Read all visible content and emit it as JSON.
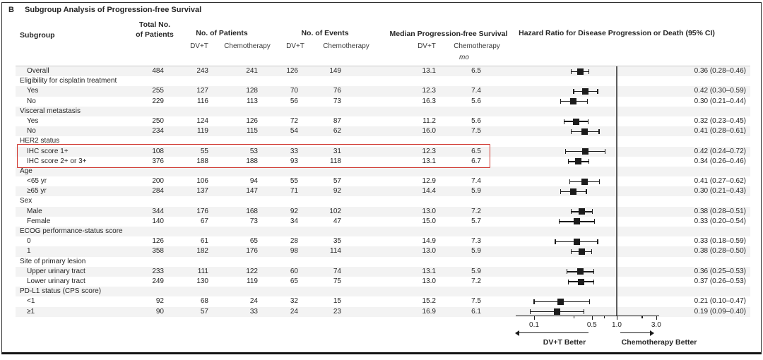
{
  "panel_label": "B",
  "title": "Subgroup Analysis of Progression-free Survival",
  "columns": {
    "subgroup": "Subgroup",
    "total_line1": "Total No.",
    "total_line2": "of Patients",
    "no_of_patients": "No. of Patients",
    "no_of_events": "No. of Events",
    "median_pfs": "Median Progression-free Survival",
    "hazard_ratio": "Hazard Ratio for Disease Progression or Death (95% CI)",
    "dvt": "DV+T",
    "chemotherapy": "Chemotherapy",
    "months_unit": "mo"
  },
  "rows": [
    {
      "type": "data",
      "label": "Overall",
      "total": "484",
      "p_dvt": "243",
      "p_chemo": "241",
      "e_dvt": "126",
      "e_chemo": "149",
      "m_dvt": "13.1",
      "m_chemo": "6.5",
      "hr_text": "0.36 (0.28–0.46)"
    },
    {
      "type": "group",
      "label": "Eligibility for cisplatin treatment"
    },
    {
      "type": "data",
      "label": "Yes",
      "total": "255",
      "p_dvt": "127",
      "p_chemo": "128",
      "e_dvt": "70",
      "e_chemo": "76",
      "m_dvt": "12.3",
      "m_chemo": "7.4",
      "hr_text": "0.42 (0.30–0.59)"
    },
    {
      "type": "data",
      "label": "No",
      "total": "229",
      "p_dvt": "116",
      "p_chemo": "113",
      "e_dvt": "56",
      "e_chemo": "73",
      "m_dvt": "16.3",
      "m_chemo": "5.6",
      "hr_text": "0.30 (0.21–0.44)"
    },
    {
      "type": "group",
      "label": "Visceral metastasis"
    },
    {
      "type": "data",
      "label": "Yes",
      "total": "250",
      "p_dvt": "124",
      "p_chemo": "126",
      "e_dvt": "72",
      "e_chemo": "87",
      "m_dvt": "11.2",
      "m_chemo": "5.6",
      "hr_text": "0.32 (0.23–0.45)"
    },
    {
      "type": "data",
      "label": "No",
      "total": "234",
      "p_dvt": "119",
      "p_chemo": "115",
      "e_dvt": "54",
      "e_chemo": "62",
      "m_dvt": "16.0",
      "m_chemo": "7.5",
      "hr_text": "0.41 (0.28–0.61)"
    },
    {
      "type": "group",
      "label": "HER2 status"
    },
    {
      "type": "data",
      "label": "IHC score 1+",
      "highlight": true,
      "total": "108",
      "p_dvt": "55",
      "p_chemo": "53",
      "e_dvt": "33",
      "e_chemo": "31",
      "m_dvt": "12.3",
      "m_chemo": "6.5",
      "hr_text": "0.42 (0.24–0.72)"
    },
    {
      "type": "data",
      "label": "IHC score 2+ or 3+",
      "highlight": true,
      "total": "376",
      "p_dvt": "188",
      "p_chemo": "188",
      "e_dvt": "93",
      "e_chemo": "118",
      "m_dvt": "13.1",
      "m_chemo": "6.7",
      "hr_text": "0.34 (0.26–0.46)"
    },
    {
      "type": "group",
      "label": "Age"
    },
    {
      "type": "data",
      "label": "<65 yr",
      "total": "200",
      "p_dvt": "106",
      "p_chemo": "94",
      "e_dvt": "55",
      "e_chemo": "57",
      "m_dvt": "12.9",
      "m_chemo": "7.4",
      "hr_text": "0.41 (0.27–0.62)"
    },
    {
      "type": "data",
      "label": "≥65 yr",
      "total": "284",
      "p_dvt": "137",
      "p_chemo": "147",
      "e_dvt": "71",
      "e_chemo": "92",
      "m_dvt": "14.4",
      "m_chemo": "5.9",
      "hr_text": "0.30 (0.21–0.43)"
    },
    {
      "type": "group",
      "label": "Sex"
    },
    {
      "type": "data",
      "label": "Male",
      "total": "344",
      "p_dvt": "176",
      "p_chemo": "168",
      "e_dvt": "92",
      "e_chemo": "102",
      "m_dvt": "13.0",
      "m_chemo": "7.2",
      "hr_text": "0.38 (0.28–0.51)"
    },
    {
      "type": "data",
      "label": "Female",
      "total": "140",
      "p_dvt": "67",
      "p_chemo": "73",
      "e_dvt": "34",
      "e_chemo": "47",
      "m_dvt": "15.0",
      "m_chemo": "5.7",
      "hr_text": "0.33 (0.20–0.54)"
    },
    {
      "type": "group",
      "label": "ECOG performance-status score"
    },
    {
      "type": "data",
      "label": "0",
      "total": "126",
      "p_dvt": "61",
      "p_chemo": "65",
      "e_dvt": "28",
      "e_chemo": "35",
      "m_dvt": "14.9",
      "m_chemo": "7.3",
      "hr_text": "0.33 (0.18–0.59)"
    },
    {
      "type": "data",
      "label": "1",
      "total": "358",
      "p_dvt": "182",
      "p_chemo": "176",
      "e_dvt": "98",
      "e_chemo": "114",
      "m_dvt": "13.0",
      "m_chemo": "5.9",
      "hr_text": "0.38 (0.28–0.50)"
    },
    {
      "type": "group",
      "label": "Site of primary lesion"
    },
    {
      "type": "data",
      "label": "Upper urinary tract",
      "total": "233",
      "p_dvt": "111",
      "p_chemo": "122",
      "e_dvt": "60",
      "e_chemo": "74",
      "m_dvt": "13.1",
      "m_chemo": "5.9",
      "hr_text": "0.36 (0.25–0.53)"
    },
    {
      "type": "data",
      "label": "Lower urinary tract",
      "total": "249",
      "p_dvt": "130",
      "p_chemo": "119",
      "e_dvt": "65",
      "e_chemo": "75",
      "m_dvt": "13.0",
      "m_chemo": "7.2",
      "hr_text": "0.37 (0.26–0.53)"
    },
    {
      "type": "group",
      "label": "PD-L1 status (CPS score)"
    },
    {
      "type": "data",
      "label": "<1",
      "total": "92",
      "p_dvt": "68",
      "p_chemo": "24",
      "e_dvt": "32",
      "e_chemo": "15",
      "m_dvt": "15.2",
      "m_chemo": "7.5",
      "hr_text": "0.21 (0.10–0.47)"
    },
    {
      "type": "data",
      "label": "≥1",
      "total": "90",
      "p_dvt": "57",
      "p_chemo": "33",
      "e_dvt": "24",
      "e_chemo": "23",
      "m_dvt": "16.9",
      "m_chemo": "6.1",
      "hr_text": "0.19 (0.09–0.40)"
    }
  ],
  "chart_data": {
    "type": "scatter",
    "subtype": "forest-plot",
    "title": "Hazard Ratio for Disease Progression or Death (95% CI)",
    "xscale": "log",
    "xtick_labels": [
      "0.1",
      "0.5",
      "1.0",
      "3.0"
    ],
    "xticks_minor": [
      0.3,
      0.7,
      2.0
    ],
    "xlim": [
      0.06,
      3.2
    ],
    "reference_line": 1.0,
    "left_direction_label": "DV+T Better",
    "right_direction_label": "Chemotherapy Better",
    "points": [
      {
        "subgroup": "Overall",
        "hr": 0.36,
        "ci_low": 0.28,
        "ci_high": 0.46
      },
      {
        "subgroup": "Eligibility for cisplatin treatment: Yes",
        "hr": 0.42,
        "ci_low": 0.3,
        "ci_high": 0.59
      },
      {
        "subgroup": "Eligibility for cisplatin treatment: No",
        "hr": 0.3,
        "ci_low": 0.21,
        "ci_high": 0.44
      },
      {
        "subgroup": "Visceral metastasis: Yes",
        "hr": 0.32,
        "ci_low": 0.23,
        "ci_high": 0.45
      },
      {
        "subgroup": "Visceral metastasis: No",
        "hr": 0.41,
        "ci_low": 0.28,
        "ci_high": 0.61
      },
      {
        "subgroup": "HER2 status: IHC score 1+",
        "hr": 0.42,
        "ci_low": 0.24,
        "ci_high": 0.72
      },
      {
        "subgroup": "HER2 status: IHC score 2+ or 3+",
        "hr": 0.34,
        "ci_low": 0.26,
        "ci_high": 0.46
      },
      {
        "subgroup": "Age: <65 yr",
        "hr": 0.41,
        "ci_low": 0.27,
        "ci_high": 0.62
      },
      {
        "subgroup": "Age: ≥65 yr",
        "hr": 0.3,
        "ci_low": 0.21,
        "ci_high": 0.43
      },
      {
        "subgroup": "Sex: Male",
        "hr": 0.38,
        "ci_low": 0.28,
        "ci_high": 0.51
      },
      {
        "subgroup": "Sex: Female",
        "hr": 0.33,
        "ci_low": 0.2,
        "ci_high": 0.54
      },
      {
        "subgroup": "ECOG performance-status score: 0",
        "hr": 0.33,
        "ci_low": 0.18,
        "ci_high": 0.59
      },
      {
        "subgroup": "ECOG performance-status score: 1",
        "hr": 0.38,
        "ci_low": 0.28,
        "ci_high": 0.5
      },
      {
        "subgroup": "Site of primary lesion: Upper urinary tract",
        "hr": 0.36,
        "ci_low": 0.25,
        "ci_high": 0.53
      },
      {
        "subgroup": "Site of primary lesion: Lower urinary tract",
        "hr": 0.37,
        "ci_low": 0.26,
        "ci_high": 0.53
      },
      {
        "subgroup": "PD-L1 status (CPS score): <1",
        "hr": 0.21,
        "ci_low": 0.1,
        "ci_high": 0.47
      },
      {
        "subgroup": "PD-L1 status (CPS score): ≥1",
        "hr": 0.19,
        "ci_low": 0.09,
        "ci_high": 0.4
      }
    ]
  },
  "highlight": {
    "color": "#d0342c",
    "rows": [
      "IHC score 1+",
      "IHC score 2+ or 3+"
    ]
  },
  "styles": {
    "stripe_color": "#f1f1f1",
    "marker_color": "#1b1b1b",
    "reference_line_color": "#5c5c5c"
  }
}
